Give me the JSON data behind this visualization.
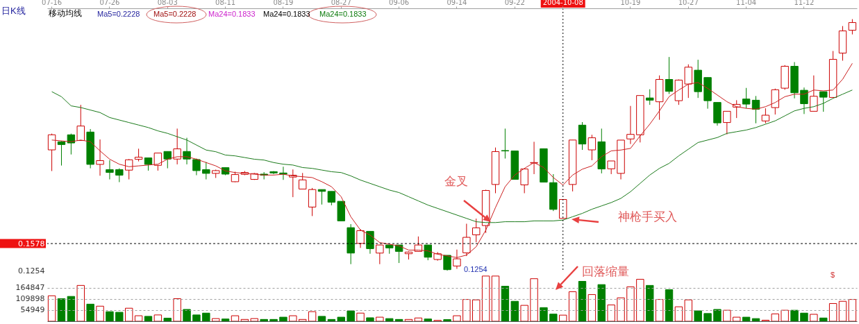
{
  "chart_data": [
    {
      "type": "candlestick",
      "categories": [
        "07-16",
        null,
        null,
        null,
        null,
        null,
        "07-26",
        null,
        null,
        null,
        null,
        null,
        "08-03",
        null,
        null,
        null,
        null,
        null,
        "08-11",
        null,
        null,
        null,
        null,
        null,
        "08-19",
        null,
        null,
        null,
        null,
        null,
        "08-27",
        null,
        null,
        null,
        null,
        null,
        "09-06",
        null,
        null,
        null,
        null,
        null,
        "09-14",
        null,
        null,
        null,
        null,
        null,
        "09-22",
        null,
        null,
        null,
        null,
        "2004-10-08",
        null,
        null,
        null,
        null,
        null,
        null,
        "10-19",
        null,
        null,
        null,
        null,
        null,
        "10-27",
        null,
        null,
        null,
        null,
        null,
        "11-04",
        null,
        null,
        null,
        null,
        null,
        "11-12",
        null,
        null,
        null,
        null,
        null
      ],
      "ohlc": [
        [
          0.2702,
          0.2897,
          0.2448,
          0.2883
        ],
        [
          0.2799,
          0.2808,
          0.2514,
          0.2766
        ],
        [
          0.2883,
          0.2897,
          0.2647,
          0.2785
        ],
        [
          0.2814,
          0.3242,
          0.2814,
          0.2988
        ],
        [
          0.2916,
          0.2952,
          0.2481,
          0.2528
        ],
        [
          0.2528,
          0.2827,
          0.2392,
          0.2573
        ],
        [
          0.2465,
          0.2578,
          0.2348,
          0.2431
        ],
        [
          0.2465,
          0.2481,
          0.2315,
          0.2398
        ],
        [
          0.2459,
          0.2592,
          0.2348,
          0.2583
        ],
        [
          0.2589,
          0.2716,
          0.2564,
          0.2614
        ],
        [
          0.2606,
          0.2606,
          0.2453,
          0.2528
        ],
        [
          0.2517,
          0.2664,
          0.2453,
          0.2664
        ],
        [
          0.2683,
          0.2683,
          0.2481,
          0.2592
        ],
        [
          0.2592,
          0.2957,
          0.2528,
          0.2714
        ],
        [
          0.2683,
          0.2847,
          0.2528,
          0.2592
        ],
        [
          0.2586,
          0.2598,
          0.2398,
          0.2453
        ],
        [
          0.2465,
          0.2556,
          0.2348,
          0.242
        ],
        [
          0.242,
          0.2465,
          0.2365,
          0.2453
        ],
        [
          0.2489,
          0.2489,
          0.2398,
          0.2411
        ],
        [
          0.232,
          0.244,
          0.2315,
          0.2406
        ],
        [
          0.2409,
          0.2448,
          0.2398,
          0.2431
        ],
        [
          0.2348,
          0.2425,
          0.2342,
          0.2417
        ],
        [
          0.2411,
          0.2436,
          0.2348,
          0.2398
        ],
        [
          0.244,
          0.2448,
          0.2411,
          0.2425
        ],
        [
          0.2425,
          0.25,
          0.2342,
          0.2411
        ],
        [
          0.2376,
          0.2467,
          0.2135,
          0.2398
        ],
        [
          0.2232,
          0.2425,
          0.2232,
          0.2342
        ],
        [
          0.2016,
          0.2245,
          0.1908,
          0.2226
        ],
        [
          0.2226,
          0.2226,
          0.2046,
          0.2204
        ],
        [
          0.2204,
          0.2204,
          0.2037,
          0.2074
        ],
        [
          0.2085,
          0.2085,
          0.185,
          0.185
        ],
        [
          0.1769,
          0.1811,
          0.1331,
          0.1464
        ],
        [
          0.158,
          0.1752,
          0.1526,
          0.1733
        ],
        [
          0.1725,
          0.1725,
          0.1456,
          0.1517
        ],
        [
          0.1464,
          0.1561,
          0.1331,
          0.1561
        ],
        [
          0.1561,
          0.1561,
          0.1456,
          0.1526
        ],
        [
          0.1561,
          0.1561,
          0.1345,
          0.1484
        ],
        [
          0.1456,
          0.1484,
          0.1387,
          0.1476
        ],
        [
          0.1484,
          0.1663,
          0.1484,
          0.1561
        ],
        [
          0.1561,
          0.1561,
          0.1378,
          0.1414
        ],
        [
          0.1387,
          0.1476,
          0.1373,
          0.1456
        ],
        [
          0.1437,
          0.1437,
          0.1254,
          0.1265
        ],
        [
          0.1309,
          0.1506,
          0.1275,
          0.1395
        ],
        [
          0.1467,
          0.1816,
          0.1428,
          0.1653
        ],
        [
          0.1683,
          0.1877,
          0.1594,
          0.1767
        ],
        [
          0.1794,
          0.2224,
          0.1705,
          0.2215
        ],
        [
          0.2287,
          0.273,
          0.2182,
          0.2681
        ],
        [
          0.2694,
          0.2957,
          0.2598,
          0.2689
        ],
        [
          0.2689,
          0.2689,
          0.2348,
          0.2348
        ],
        [
          0.2282,
          0.2473,
          0.2182,
          0.2473
        ],
        [
          0.2544,
          0.2799,
          0.2411,
          0.255
        ],
        [
          0.2716,
          0.2716,
          0.2315,
          0.2315
        ],
        [
          0.2309,
          0.2411,
          0.1968,
          0.1988
        ],
        [
          0.188,
          0.2107,
          0.188,
          0.2107
        ],
        [
          0.2287,
          0.282,
          0.2204,
          0.282
        ],
        [
          0.2999,
          0.3035,
          0.2702,
          0.2772
        ],
        [
          0.2702,
          0.2883,
          0.2578,
          0.2847
        ],
        [
          0.2799,
          0.2957,
          0.242,
          0.2473
        ],
        [
          0.2475,
          0.2569,
          0.2411,
          0.2569
        ],
        [
          0.242,
          0.2819,
          0.2348,
          0.2819
        ],
        [
          0.2833,
          0.3229,
          0.2772,
          0.2888
        ],
        [
          0.2883,
          0.3354,
          0.2791,
          0.3354
        ],
        [
          0.3325,
          0.3429,
          0.3242,
          0.3298
        ],
        [
          0.3279,
          0.3595,
          0.3063,
          0.3547
        ],
        [
          0.3547,
          0.3816,
          0.3373,
          0.3404
        ],
        [
          0.3292,
          0.3547,
          0.3242,
          0.3539
        ],
        [
          0.3492,
          0.3728,
          0.3325,
          0.3694
        ],
        [
          0.3658,
          0.3783,
          0.3325,
          0.34
        ],
        [
          0.357,
          0.357,
          0.3196,
          0.3292
        ],
        [
          0.3271,
          0.3271,
          0.2993,
          0.3026
        ],
        [
          0.303,
          0.3165,
          0.2888,
          0.3165
        ],
        [
          0.3215,
          0.3298,
          0.3084,
          0.3248
        ],
        [
          0.3312,
          0.3445,
          0.3201,
          0.3251
        ],
        [
          0.3298,
          0.3348,
          0.3021,
          0.3188
        ],
        [
          0.3049,
          0.3201,
          0.3021,
          0.3118
        ],
        [
          0.3209,
          0.3437,
          0.3126,
          0.3423
        ],
        [
          0.3442,
          0.3719,
          0.3423,
          0.3705
        ],
        [
          0.3705,
          0.3755,
          0.332,
          0.3387
        ],
        [
          0.3417,
          0.345,
          0.3132,
          0.3256
        ],
        [
          0.3165,
          0.3595,
          0.3165,
          0.3345
        ],
        [
          0.34,
          0.34,
          0.3159,
          0.3334
        ],
        [
          0.3331,
          0.3888,
          0.3331,
          0.3788
        ],
        [
          0.3863,
          0.4187,
          0.3772,
          0.4129
        ],
        [
          0.4137,
          0.427,
          0.4087,
          0.4229
        ]
      ],
      "colors": [
        "#cc0000",
        "#008000",
        "#008000",
        "#cc0000",
        "#008000",
        "#cc0000",
        "#008000",
        "#008000",
        "#cc0000",
        "#cc0000",
        "#008000",
        "#cc0000",
        "#008000",
        "#cc0000",
        "#008000",
        "#008000",
        "#008000",
        "#cc0000",
        "#008000",
        "#cc0000",
        "#cc0000",
        "#cc0000",
        "#008000",
        "#008000",
        "#008000",
        "#cc0000",
        "#cc0000",
        "#cc0000",
        "#008000",
        "#008000",
        "#008000",
        "#008000",
        "#cc0000",
        "#008000",
        "#cc0000",
        "#008000",
        "#008000",
        "#cc0000",
        "#cc0000",
        "#008000",
        "#cc0000",
        "#008000",
        "#cc0000",
        "#cc0000",
        "#cc0000",
        "#cc0000",
        "#cc0000",
        "#008000",
        "#008000",
        "#cc0000",
        "#cc0000",
        "#008000",
        "#008000",
        "#cc0000",
        "#cc0000",
        "#008000",
        "#cc0000",
        "#008000",
        "#cc0000",
        "#cc0000",
        "#cc0000",
        "#cc0000",
        "#008000",
        "#cc0000",
        "#008000",
        "#cc0000",
        "#cc0000",
        "#008000",
        "#008000",
        "#008000",
        "#cc0000",
        "#cc0000",
        "#008000",
        "#008000",
        "#cc0000",
        "#cc0000",
        "#cc0000",
        "#008000",
        "#008000",
        "#cc0000",
        "#008000",
        "#cc0000",
        "#cc0000",
        "#cc0000"
      ],
      "series": [
        {
          "type": "line",
          "color": "#cc2020",
          "values": [
            0.282,
            0.281,
            0.28,
            0.282,
            0.28,
            0.269,
            0.259,
            0.253,
            0.25,
            0.251,
            0.252,
            0.253,
            0.259,
            0.262,
            0.262,
            0.259,
            0.255,
            0.251,
            0.245,
            0.243,
            0.242,
            0.241,
            0.24,
            0.24,
            0.241,
            0.239,
            0.238,
            0.237,
            0.232,
            0.226,
            0.214,
            0.19,
            0.174,
            0.168,
            0.159,
            0.157,
            0.155,
            0.15,
            0.15,
            0.149,
            0.145,
            0.143,
            0.141,
            0.144,
            0.154,
            0.174,
            0.201,
            0.226,
            0.24,
            0.248,
            0.255,
            0.249,
            0.237,
            0.228,
            0.24,
            0.247,
            0.251,
            0.262,
            0.269,
            0.27,
            0.272,
            0.287,
            0.301,
            0.317,
            0.334,
            0.342,
            0.349,
            0.351,
            0.344,
            0.336,
            0.328,
            0.322,
            0.32,
            0.319,
            0.322,
            0.327,
            0.334,
            0.337,
            0.337,
            0.342,
            0.341,
            0.342,
            0.355,
            0.374
          ]
        },
        {
          "type": "line",
          "color": "#1a7a1a",
          "values": [
            0.34,
            0.334,
            0.323,
            0.321,
            0.318,
            0.315,
            0.309,
            0.306,
            0.303,
            0.3,
            0.297,
            0.293,
            0.29,
            0.286,
            0.282,
            0.276,
            0.27,
            0.268,
            0.264,
            0.263,
            0.261,
            0.259,
            0.258,
            0.255,
            0.253,
            0.252,
            0.249,
            0.248,
            0.246,
            0.244,
            0.243,
            0.239,
            0.234,
            0.23,
            0.226,
            0.222,
            0.219,
            0.214,
            0.209,
            0.204,
            0.2,
            0.196,
            0.192,
            0.188,
            0.184,
            0.183,
            0.183,
            0.184,
            0.184,
            0.184,
            0.185,
            0.185,
            0.185,
            0.186,
            0.19,
            0.194,
            0.199,
            0.203,
            0.207,
            0.212,
            0.22,
            0.23,
            0.24,
            0.248,
            0.254,
            0.263,
            0.271,
            0.279,
            0.282,
            0.285,
            0.29,
            0.292,
            0.294,
            0.297,
            0.301,
            0.305,
            0.311,
            0.317,
            0.32,
            0.322,
            0.326,
            0.332,
            0.337,
            0.342
          ]
        }
      ],
      "ylim": [
        0.1254,
        0.44
      ],
      "yticks": [
        0.1254,
        0.1578
      ],
      "ref_lines": [
        {
          "axis": "y",
          "value": 0.1578,
          "color": "#000000",
          "line_style": "dashed"
        },
        {
          "axis": "x",
          "value": "2004-10-08",
          "color": "#000000",
          "line_style": "dotted"
        }
      ],
      "annotations": [
        "日K线",
        "移动均线",
        "Ma5=0.2228",
        "Ma5=0.2228",
        "Ma24=0.1833",
        "Ma24=0.1833",
        "Ma24=0.1833",
        "金叉",
        "神枪手买入",
        "0.1254"
      ]
    },
    {
      "type": "bar",
      "categories": [
        null,
        null,
        null,
        null,
        null,
        null,
        null,
        null,
        null,
        null,
        null,
        null,
        null,
        null,
        null,
        null,
        null,
        null,
        null,
        null,
        null,
        null,
        null,
        null,
        null,
        null,
        null,
        null,
        null,
        null,
        null,
        null,
        null,
        null,
        null,
        null,
        null,
        null,
        null,
        null,
        null,
        null,
        null,
        null,
        null,
        null,
        null,
        null,
        null,
        null,
        null,
        null,
        null,
        null,
        null,
        null,
        null,
        null,
        null,
        null,
        null,
        null,
        null,
        null,
        null,
        null,
        null,
        null,
        null,
        null,
        null,
        null,
        null,
        null,
        null,
        null,
        null,
        null,
        null,
        null,
        null,
        null,
        null,
        null
      ],
      "values": [
        125000,
        111000,
        122000,
        176000,
        84000,
        74000,
        47000,
        44000,
        64000,
        27000,
        24000,
        31000,
        15000,
        111000,
        58000,
        31000,
        40000,
        13000,
        11000,
        27000,
        9000,
        13000,
        9000,
        9000,
        20000,
        27000,
        9000,
        47000,
        24000,
        9000,
        20000,
        51000,
        40000,
        17000,
        20000,
        13000,
        9000,
        9000,
        16000,
        11000,
        4000,
        8000,
        27000,
        107000,
        105000,
        222000,
        222000,
        172000,
        98000,
        78000,
        209000,
        67000,
        35000,
        30000,
        145000,
        196000,
        131000,
        180000,
        80000,
        115000,
        169000,
        206000,
        176000,
        107000,
        155000,
        71000,
        105000,
        51000,
        38000,
        58000,
        54000,
        20000,
        20000,
        13000,
        5000,
        36000,
        54000,
        54000,
        40000,
        34000,
        16000,
        87000,
        98000,
        107000
      ],
      "colors": [
        "#cc0000",
        "#008000",
        "#008000",
        "#cc0000",
        "#008000",
        "#cc0000",
        "#008000",
        "#008000",
        "#cc0000",
        "#cc0000",
        "#008000",
        "#cc0000",
        "#008000",
        "#cc0000",
        "#008000",
        "#008000",
        "#008000",
        "#cc0000",
        "#008000",
        "#cc0000",
        "#cc0000",
        "#cc0000",
        "#008000",
        "#008000",
        "#008000",
        "#cc0000",
        "#cc0000",
        "#cc0000",
        "#008000",
        "#008000",
        "#008000",
        "#008000",
        "#cc0000",
        "#008000",
        "#cc0000",
        "#008000",
        "#008000",
        "#cc0000",
        "#cc0000",
        "#008000",
        "#cc0000",
        "#008000",
        "#cc0000",
        "#cc0000",
        "#cc0000",
        "#cc0000",
        "#cc0000",
        "#008000",
        "#008000",
        "#cc0000",
        "#cc0000",
        "#008000",
        "#008000",
        "#cc0000",
        "#cc0000",
        "#008000",
        "#cc0000",
        "#008000",
        "#cc0000",
        "#cc0000",
        "#cc0000",
        "#cc0000",
        "#008000",
        "#cc0000",
        "#008000",
        "#cc0000",
        "#cc0000",
        "#008000",
        "#008000",
        "#008000",
        "#cc0000",
        "#cc0000",
        "#008000",
        "#008000",
        "#cc0000",
        "#cc0000",
        "#cc0000",
        "#008000",
        "#008000",
        "#cc0000",
        "#008000",
        "#cc0000",
        "#cc0000",
        "#cc0000"
      ],
      "ylim": [
        0,
        225000
      ],
      "yticks": [
        54949,
        109898,
        164847
      ],
      "grid": "y",
      "tick_labels": "y",
      "annotations": [
        "回落缩量",
        "$"
      ]
    }
  ]
}
